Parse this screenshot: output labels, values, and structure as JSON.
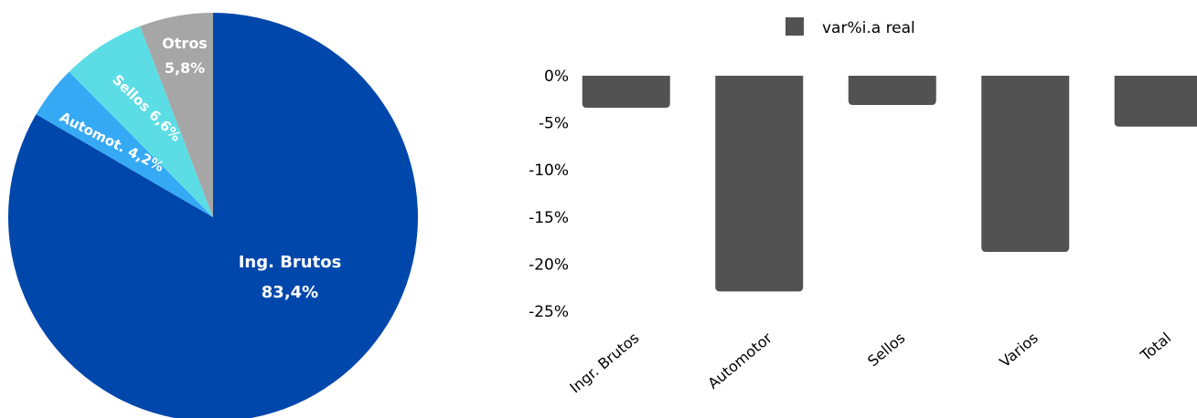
{
  "chart_data": [
    {
      "type": "pie",
      "slices": [
        {
          "label": "Ing. Brutos",
          "value": 83.4,
          "value_label": "83,4%",
          "color": "#0047AB"
        },
        {
          "label": "Automot.",
          "value": 4.2,
          "value_label": "4,2%",
          "color": "#36A9F5"
        },
        {
          "label": "Sellos",
          "value": 6.6,
          "value_label": "6,6%",
          "color": "#5CDDE5"
        },
        {
          "label": "Otros",
          "value": 5.8,
          "value_label": "5,8%",
          "color": "#A6A6A6"
        }
      ]
    },
    {
      "type": "bar",
      "legend": "var%i.a real",
      "legend_position": "top-center",
      "categories": [
        "Ingr. Brutos",
        "Automotor",
        "Sellos",
        "Varios",
        "Total"
      ],
      "values": [
        -3.4,
        -22.9,
        -3.1,
        -18.7,
        -5.4
      ],
      "bar_color": "#525252",
      "ylim": [
        -25,
        0
      ],
      "yticks": [
        {
          "value": 0,
          "label": "0%"
        },
        {
          "value": -5,
          "label": "-5%"
        },
        {
          "value": -10,
          "label": "-10%"
        },
        {
          "value": -15,
          "label": "-15%"
        },
        {
          "value": -20,
          "label": "-20%"
        },
        {
          "value": -25,
          "label": "-25%"
        }
      ],
      "grid": false
    }
  ]
}
